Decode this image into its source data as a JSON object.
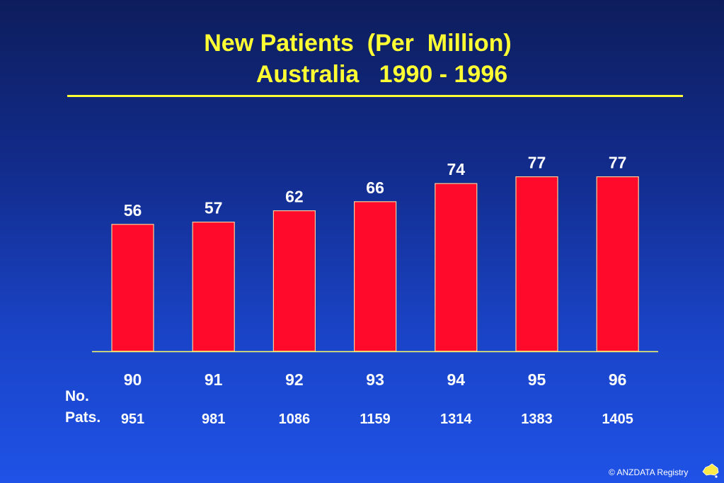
{
  "title_line1": "New Patients  (Per  Million)",
  "title_line2": "Australia   1990 - 1996",
  "row_label_no": "No.",
  "row_label_pats": "Pats.",
  "copyright": "© ANZDATA Registry",
  "colors": {
    "bar": "#ff0a2a",
    "bar_stroke": "#ffcc99",
    "title": "#ffff33",
    "text": "#ffffff",
    "axis": "#ffff66"
  },
  "chart_data": {
    "type": "bar",
    "title": "New Patients  (Per  Million) Australia   1990 - 1996",
    "categories": [
      "90",
      "91",
      "92",
      "93",
      "94",
      "95",
      "96"
    ],
    "values": [
      56,
      57,
      62,
      66,
      74,
      77,
      77
    ],
    "patients": [
      "951",
      "981",
      "1086",
      "1159",
      "1314",
      "1383",
      "1405"
    ],
    "ylim": [
      0,
      100
    ],
    "grid": false,
    "xlabel": "",
    "ylabel": ""
  }
}
